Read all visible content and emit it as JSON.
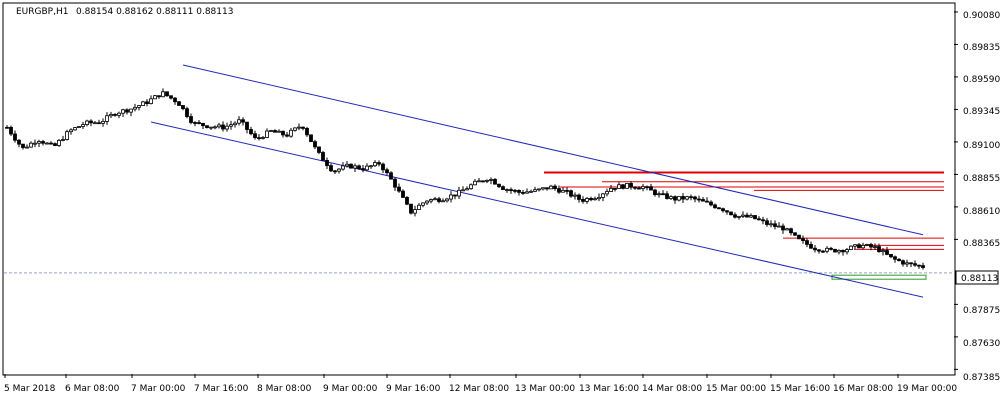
{
  "chart_data": {
    "type": "candlestick",
    "symbol_label": "EURGBP,H1",
    "ohlc_label": "0.88154 0.88162 0.88111 0.88113",
    "current_price": 0.88113,
    "current_price_label": "0.88113",
    "y_ticks": [
      "0.90080",
      "0.89835",
      "0.89590",
      "0.89345",
      "0.89100",
      "0.88855",
      "0.88610",
      "0.88365",
      "0.87875",
      "0.87630",
      "0.87385"
    ],
    "x_ticks": [
      "5 Mar 2018",
      "6 Mar 08:00",
      "7 Mar 00:00",
      "7 Mar 16:00",
      "8 Mar 08:00",
      "9 Mar 00:00",
      "9 Mar 16:00",
      "12 Mar 08:00",
      "13 Mar 00:00",
      "13 Mar 16:00",
      "14 Mar 08:00",
      "15 Mar 00:00",
      "15 Mar 16:00",
      "16 Mar 08:00",
      "19 Mar 00:00"
    ],
    "ylim": [
      0.8735,
      0.9014
    ],
    "n_bars": 230,
    "price_path": [
      [
        0,
        0.8921
      ],
      [
        6,
        0.8905
      ],
      [
        12,
        0.8912
      ],
      [
        18,
        0.8906
      ],
      [
        24,
        0.8918
      ],
      [
        30,
        0.8924
      ],
      [
        36,
        0.8925
      ],
      [
        42,
        0.8932
      ],
      [
        48,
        0.8935
      ],
      [
        54,
        0.894
      ],
      [
        60,
        0.8947
      ],
      [
        66,
        0.894
      ],
      [
        72,
        0.8924
      ],
      [
        78,
        0.8922
      ],
      [
        84,
        0.8921
      ],
      [
        90,
        0.8926
      ],
      [
        96,
        0.8912
      ],
      [
        102,
        0.8918
      ],
      [
        108,
        0.8915
      ],
      [
        114,
        0.8923
      ],
      [
        120,
        0.8902
      ],
      [
        126,
        0.8888
      ],
      [
        132,
        0.8892
      ],
      [
        138,
        0.889
      ],
      [
        144,
        0.8894
      ],
      [
        150,
        0.8877
      ],
      [
        156,
        0.8857
      ],
      [
        162,
        0.8866
      ],
      [
        168,
        0.8867
      ],
      [
        174,
        0.8871
      ],
      [
        180,
        0.8878
      ],
      [
        186,
        0.8883
      ],
      [
        192,
        0.8875
      ],
      [
        198,
        0.8872
      ],
      [
        204,
        0.8873
      ],
      [
        210,
        0.8876
      ],
      [
        216,
        0.8872
      ],
      [
        222,
        0.8866
      ],
      [
        228,
        0.8869
      ],
      [
        234,
        0.8876
      ],
      [
        240,
        0.8877
      ],
      [
        246,
        0.8876
      ],
      [
        252,
        0.887
      ],
      [
        258,
        0.8867
      ],
      [
        264,
        0.8868
      ],
      [
        270,
        0.8864
      ],
      [
        276,
        0.886
      ],
      [
        282,
        0.8854
      ],
      [
        288,
        0.8853
      ],
      [
        294,
        0.8848
      ],
      [
        300,
        0.8845
      ],
      [
        306,
        0.8836
      ],
      [
        312,
        0.883
      ],
      [
        318,
        0.8828
      ],
      [
        324,
        0.8829
      ],
      [
        330,
        0.8832
      ],
      [
        336,
        0.883
      ],
      [
        342,
        0.8822
      ],
      [
        348,
        0.8818
      ],
      [
        354,
        0.8816
      ]
    ],
    "channel": {
      "upper": {
        "start": [
          0.8968,
          44
        ],
        "end": [
          0.884,
          229
        ]
      },
      "lower": {
        "start": [
          0.8925,
          36
        ],
        "end": [
          0.8793,
          229
        ]
      }
    },
    "resistance_levels": [
      0.88869,
      0.888,
      0.8876,
      0.88735,
      0.88375,
      0.8832,
      0.8829
    ],
    "support_level": 0.8808,
    "colors": {
      "background": "#ffffff",
      "grid": "#e8e8e8",
      "candle": "#000000",
      "channel": "#1f2ab8",
      "resistance": "#e00000",
      "support": "#2e9a2e",
      "ask_line": "#9aa4c0",
      "price_tag": "#ffffff"
    }
  }
}
